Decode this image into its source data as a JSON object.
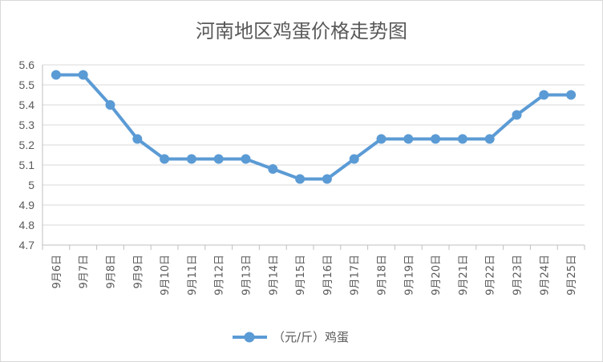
{
  "chart_data": {
    "type": "line",
    "title": "河南地区鸡蛋价格走势图",
    "categories": [
      "9月6日",
      "9月7日",
      "9月8日",
      "9月9日",
      "9月10日",
      "9月11日",
      "9月12日",
      "9月13日",
      "9月14日",
      "9月15日",
      "9月16日",
      "9月17日",
      "9月18日",
      "9月19日",
      "9月20日",
      "9月21日",
      "9月22日",
      "9月23日",
      "9月24日",
      "9月25日"
    ],
    "series": [
      {
        "name": "（元/斤）鸡蛋",
        "color": "#5b9bd5",
        "values": [
          5.55,
          5.55,
          5.4,
          5.23,
          5.13,
          5.13,
          5.13,
          5.13,
          5.08,
          5.03,
          5.03,
          5.13,
          5.23,
          5.23,
          5.23,
          5.23,
          5.23,
          5.35,
          5.45,
          5.45
        ]
      }
    ],
    "yticks": [
      "4.7",
      "4.8",
      "4.9",
      "5",
      "5.1",
      "5.2",
      "5.3",
      "5.4",
      "5.5",
      "5.6"
    ],
    "ylim": [
      4.7,
      5.6
    ],
    "grid": true,
    "legend": "bottom",
    "xlabel": "",
    "ylabel": ""
  }
}
